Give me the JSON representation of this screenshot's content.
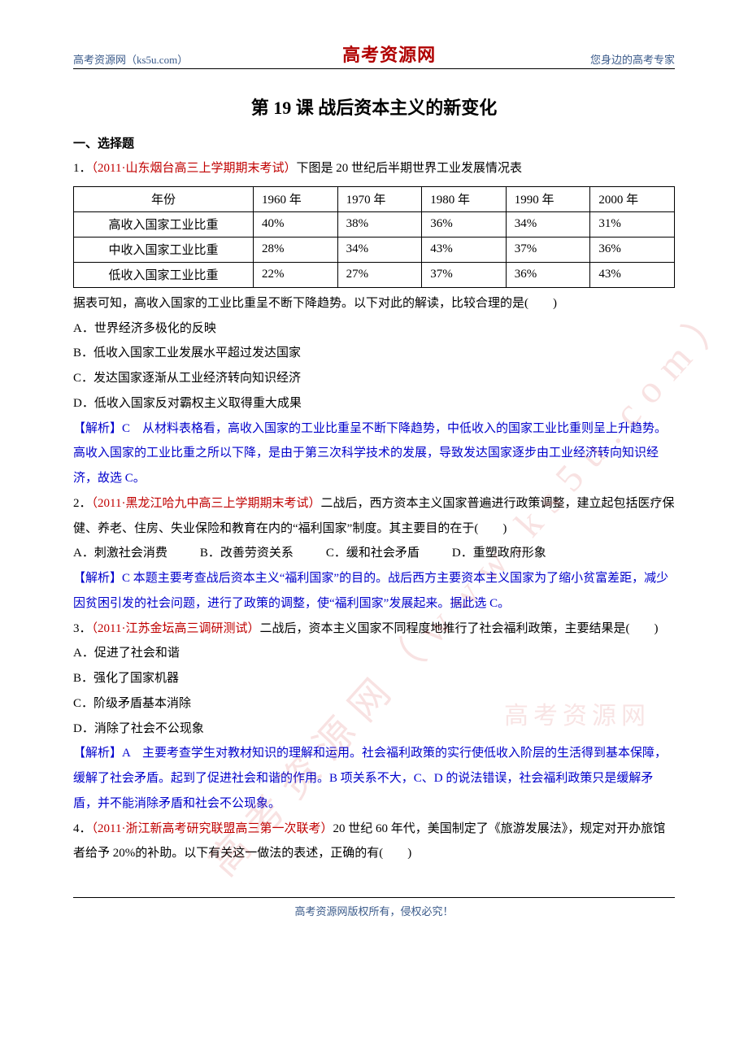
{
  "header": {
    "left": "高考资源网（ks5u.com）",
    "center": "高考资源网",
    "right": "您身边的高考专家"
  },
  "title": "第 19 课  战后资本主义的新变化",
  "section_heading": "一、选择题",
  "watermarks": {
    "diagonal": "高考资源网（www.ks5u.com）",
    "horizontal": "高考资源网"
  },
  "q1": {
    "num": "1．",
    "source": "（2011·山东烟台高三上学期期末考试）",
    "stem": "下图是 20 世纪后半期世界工业发展情况表",
    "table": {
      "columns": [
        "年份",
        "1960 年",
        "1970 年",
        "1980 年",
        "1990 年",
        "2000 年"
      ],
      "rows": [
        [
          "高收入国家工业比重",
          "40%",
          "38%",
          "36%",
          "34%",
          "31%"
        ],
        [
          "中收入国家工业比重",
          "28%",
          "34%",
          "43%",
          "37%",
          "36%"
        ],
        [
          "低收入国家工业比重",
          "22%",
          "27%",
          "37%",
          "36%",
          "43%"
        ]
      ]
    },
    "post_table": "据表可知，高收入国家的工业比重呈不断下降趋势。以下对此的解读，比较合理的是(　　)",
    "opts": {
      "a": "A．世界经济多极化的反映",
      "b": "B．低收入国家工业发展水平超过发达国家",
      "c": "C．发达国家逐渐从工业经济转向知识经济",
      "d": "D．低收入国家反对霸权主义取得重大成果"
    },
    "expl": "【解析】C　从材料表格看，高收入国家的工业比重呈不断下降趋势，中低收入的国家工业比重则呈上升趋势。高收入国家的工业比重之所以下降，是由于第三次科学技术的发展，导致发达国家逐步由工业经济转向知识经济，故选 C。"
  },
  "q2": {
    "num": "2．",
    "source": "（2011·黑龙江哈九中高三上学期期末考试）",
    "stem": "二战后，西方资本主义国家普遍进行政策调整，建立起包括医疗保健、养老、住房、失业保险和教育在内的“福利国家”制度。其主要目的在于(　　)",
    "opts": {
      "a": "A．刺激社会消费",
      "b": "B．改善劳资关系",
      "c": "C．缓和社会矛盾",
      "d": "D．重塑政府形象"
    },
    "expl": "【解析】C 本题主要考查战后资本主义“福利国家”的目的。战后西方主要资本主义国家为了缩小贫富差距，减少因贫困引发的社会问题，进行了政策的调整，使“福利国家”发展起来。据此选 C。"
  },
  "q3": {
    "num": "3．",
    "source": "（2011·江苏金坛高三调研测试）",
    "stem": "二战后，资本主义国家不同程度地推行了社会福利政策，主要结果是(　　)",
    "opts": {
      "a": "A．促进了社会和谐",
      "b": "B．强化了国家机器",
      "c": "C．阶级矛盾基本消除",
      "d": "D．消除了社会不公现象"
    },
    "expl": "【解析】A　主要考查学生对教材知识的理解和运用。社会福利政策的实行使低收入阶层的生活得到基本保障，缓解了社会矛盾。起到了促进社会和谐的作用。B 项关系不大，C、D 的说法错误，社会福利政策只是缓解矛盾，并不能消除矛盾和社会不公现象。"
  },
  "q4": {
    "num": "4．",
    "source": "（2011·浙江新高考研究联盟高三第一次联考）",
    "stem": "20 世纪 60 年代，美国制定了《旅游发展法》，规定对开办旅馆者给予 20%的补助。以下有关这一做法的表述，正确的有(　　)"
  },
  "footer": "高考资源网版权所有，侵权必究！",
  "colors": {
    "red": "#c00000",
    "blue": "#0000cc",
    "header_blue": "#3a5a8a",
    "text": "#000000",
    "background": "#ffffff",
    "watermark": "rgba(200,30,30,0.13)"
  }
}
